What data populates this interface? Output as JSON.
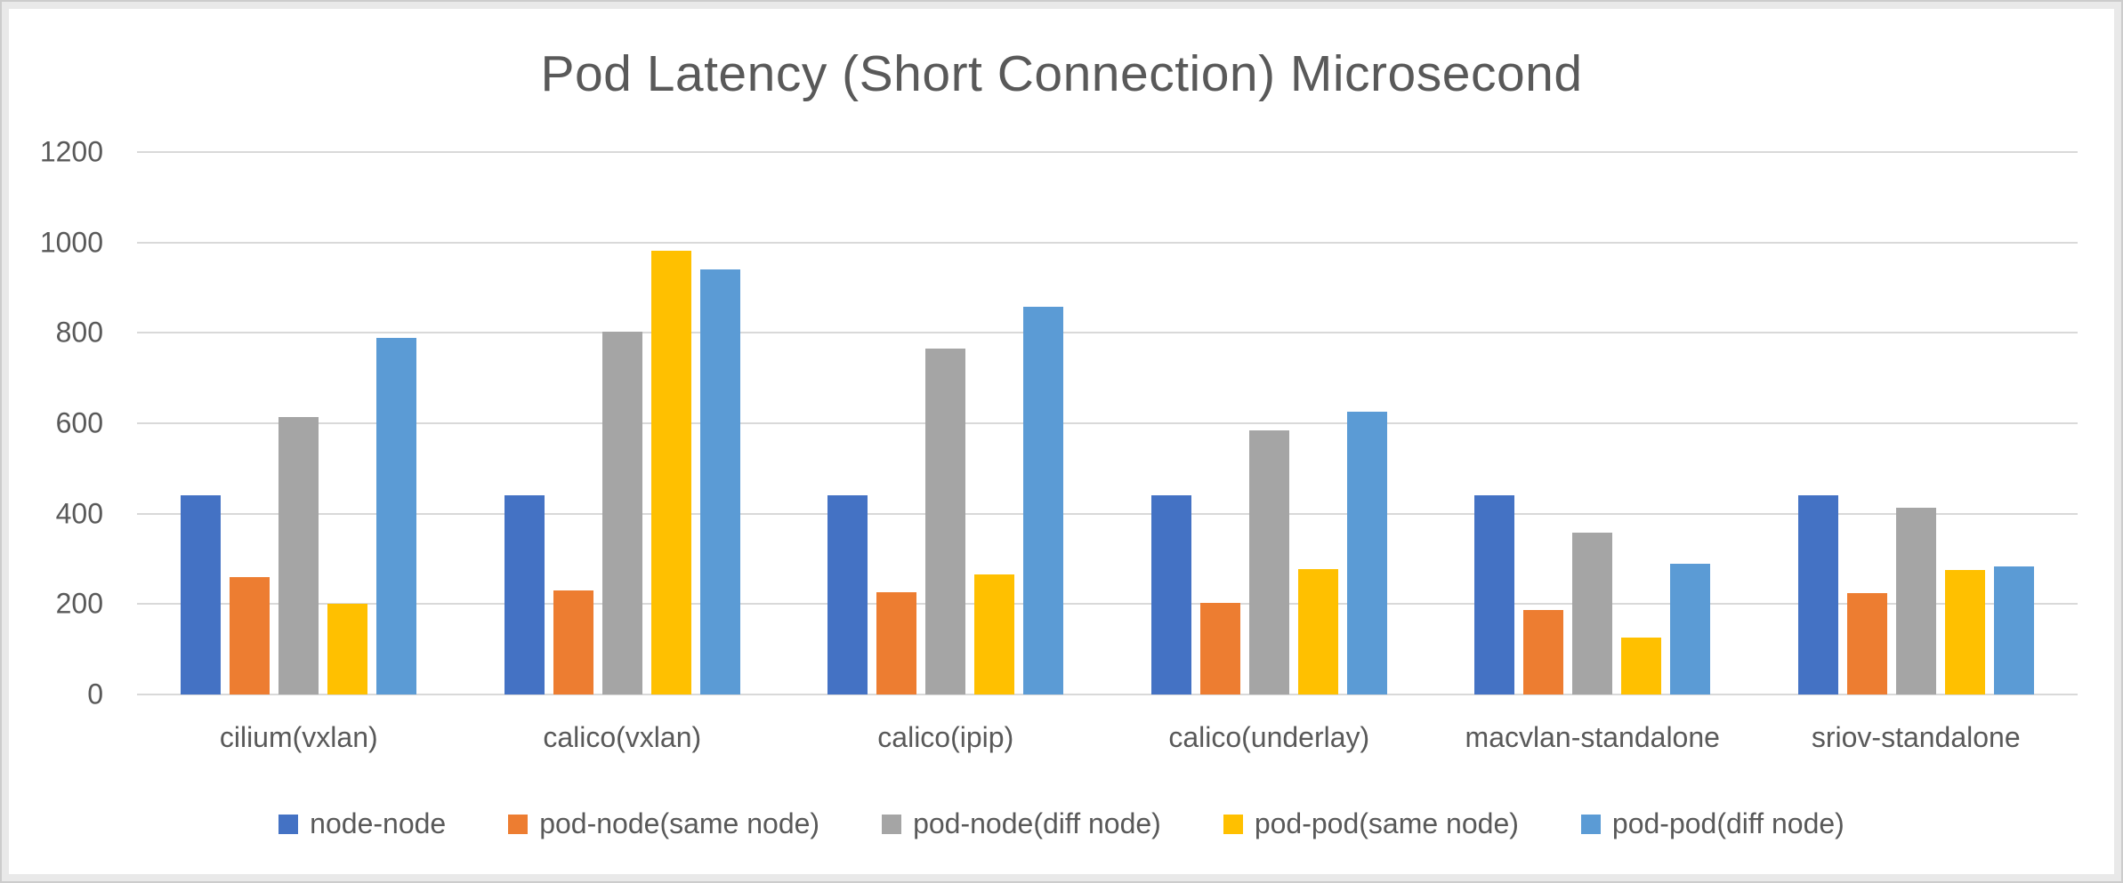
{
  "chart_data": {
    "type": "bar",
    "title": "Pod Latency (Short Connection) Microsecond",
    "categories": [
      "cilium(vxlan)",
      "calico(vxlan)",
      "calico(ipip)",
      "calico(underlay)",
      "macvlan-standalone",
      "sriov-standalone"
    ],
    "series": [
      {
        "name": "node-node",
        "color": "#4472C4",
        "values": [
          440,
          440,
          440,
          440,
          440,
          440
        ]
      },
      {
        "name": "pod-node(same node)",
        "color": "#ED7D31",
        "values": [
          260,
          230,
          226,
          203,
          186,
          224
        ]
      },
      {
        "name": "pod-node(diff node)",
        "color": "#A5A5A5",
        "values": [
          613,
          803,
          766,
          585,
          358,
          413
        ]
      },
      {
        "name": "pod-pod(same node)",
        "color": "#FFC000",
        "values": [
          200,
          981,
          265,
          277,
          125,
          276
        ]
      },
      {
        "name": "pod-pod(diff node)",
        "color": "#5B9BD5",
        "values": [
          789,
          940,
          857,
          626,
          289,
          284
        ]
      }
    ],
    "xlabel": "",
    "ylabel": "",
    "ylim": [
      0,
      1200
    ],
    "y_ticks": [
      0,
      200,
      400,
      600,
      800,
      1000,
      1200
    ],
    "grid": "horizontal",
    "legend_position": "bottom",
    "colors": {
      "text": "#595959",
      "gridline": "#D9D9D9",
      "sheet_background": "#FFFFFF",
      "frame_background": "#E9E9E9"
    }
  }
}
